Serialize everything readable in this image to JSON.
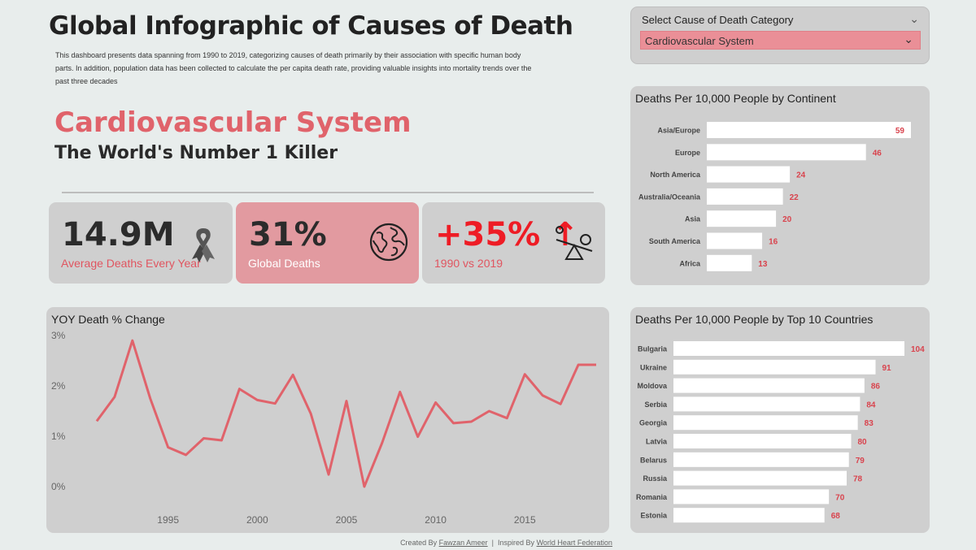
{
  "header": {
    "title": "Global Infographic of Causes of Death",
    "description": "This dashboard presents data spanning from 1990 to 2019, categorizing causes of death primarily by their association with specific human body parts. In addition, population data has been collected to calculate the per capita death rate, providing valuable insights into mortality trends over the past three decades"
  },
  "hero": {
    "category": "Cardiovascular System",
    "tagline": "The World's Number 1 Killer"
  },
  "selector": {
    "title": "Select Cause of Death Category",
    "value": "Cardiovascular System"
  },
  "kpis": [
    {
      "value": "14.9M",
      "label": "Average Deaths Every Year",
      "icon": "ribbon-icon"
    },
    {
      "value": "31%",
      "label": "Global Deaths",
      "icon": "globe-icon"
    },
    {
      "value": "+35% ↑",
      "label": "1990 vs 2019",
      "icon": "seesaw-icon"
    }
  ],
  "colors": {
    "accent": "#e0636b",
    "bar": "#ffffff",
    "label": "#d9434d",
    "panel": "#cfcfcf",
    "background": "#e8edec",
    "up": "#ee1c25"
  },
  "footer": {
    "created_prefix": "Created By",
    "author": "Fawzan Ameer",
    "separator": "|",
    "inspired_prefix": "Inspired By",
    "inspiration": "World Heart Federation"
  },
  "chart_data": [
    {
      "type": "bar",
      "orientation": "horizontal",
      "title": "Deaths Per 10,000 People by Continent",
      "categories": [
        "Asia/Europe",
        "Europe",
        "North America",
        "Australia/Oceania",
        "Asia",
        "South America",
        "Africa"
      ],
      "values": [
        59,
        46,
        24,
        22,
        20,
        16,
        13
      ]
    },
    {
      "type": "line",
      "title": "YOY Death % Change",
      "x": [
        1991,
        1992,
        1993,
        1994,
        1995,
        1996,
        1997,
        1998,
        1999,
        2000,
        2001,
        2002,
        2003,
        2004,
        2005,
        2006,
        2007,
        2008,
        2009,
        2010,
        2011,
        2012,
        2013,
        2014,
        2015,
        2016,
        2017,
        2018,
        2019
      ],
      "y": [
        1.3,
        1.78,
        2.9,
        1.75,
        0.78,
        0.63,
        0.96,
        0.92,
        1.94,
        1.72,
        1.65,
        2.22,
        1.45,
        0.24,
        1.7,
        0.0,
        0.87,
        1.88,
        0.99,
        1.67,
        1.26,
        1.29,
        1.5,
        1.36,
        2.23,
        1.81,
        1.64,
        2.42,
        2.42
      ],
      "xticks": [
        "1995",
        "2000",
        "2005",
        "2010",
        "2015"
      ],
      "yticks": [
        "0%",
        "1%",
        "2%",
        "3%"
      ],
      "ylim": [
        0,
        3
      ]
    },
    {
      "type": "bar",
      "orientation": "horizontal",
      "title": "Deaths Per 10,000 People by Top 10 Countries",
      "categories": [
        "Bulgaria",
        "Ukraine",
        "Moldova",
        "Serbia",
        "Georgia",
        "Latvia",
        "Belarus",
        "Russia",
        "Romania",
        "Estonia"
      ],
      "values": [
        104,
        91,
        86,
        84,
        83,
        80,
        79,
        78,
        70,
        68
      ]
    }
  ]
}
